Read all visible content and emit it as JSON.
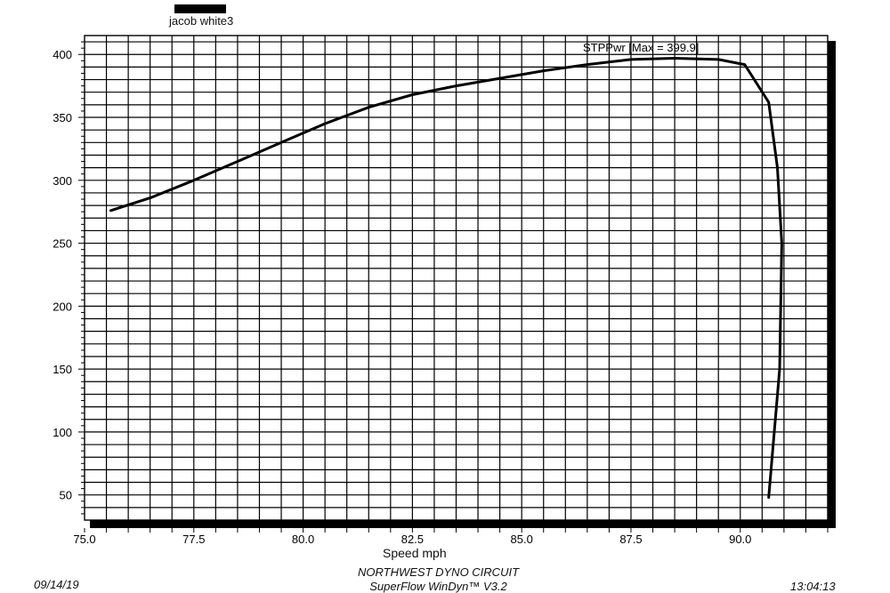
{
  "chart_data": {
    "type": "line",
    "title": "",
    "xlabel": "Speed  mph",
    "ylabel": "",
    "xlim": [
      75.0,
      92.0
    ],
    "ylim": [
      30,
      415
    ],
    "x_ticks": [
      "75.0",
      "77.5",
      "80.0",
      "82.5",
      "85.0",
      "87.5",
      "90.0"
    ],
    "x_tick_values": [
      75.0,
      77.5,
      80.0,
      82.5,
      85.0,
      87.5,
      90.0
    ],
    "y_ticks": [
      "50",
      "100",
      "150",
      "200",
      "250",
      "300",
      "350",
      "400"
    ],
    "y_tick_values": [
      50,
      100,
      150,
      200,
      250,
      300,
      350,
      400
    ],
    "grid": true,
    "legend": {
      "label": "jacob white3",
      "placement": "top-left",
      "color": "#000000"
    },
    "series": [
      {
        "name": "STPPwr",
        "annotation": "STPPwr [Max = 399.9]",
        "color": "#000000",
        "x": [
          75.6,
          76.5,
          77.5,
          78.5,
          79.5,
          80.5,
          81.5,
          82.5,
          83.5,
          84.5,
          85.5,
          86.5,
          87.5,
          88.5,
          89.5,
          90.1,
          90.65,
          90.85,
          90.95,
          90.9,
          90.65
        ],
        "y": [
          276,
          286,
          300,
          315,
          330,
          345,
          358,
          368,
          375,
          381,
          387,
          392,
          396,
          397,
          396,
          392,
          362,
          310,
          250,
          150,
          48
        ]
      }
    ]
  },
  "footer": {
    "date": "09/14/19",
    "title": "NORTHWEST DYNO CIRCUIT",
    "software": "SuperFlow WinDyn™ V3.2",
    "time": "13:04:13"
  }
}
